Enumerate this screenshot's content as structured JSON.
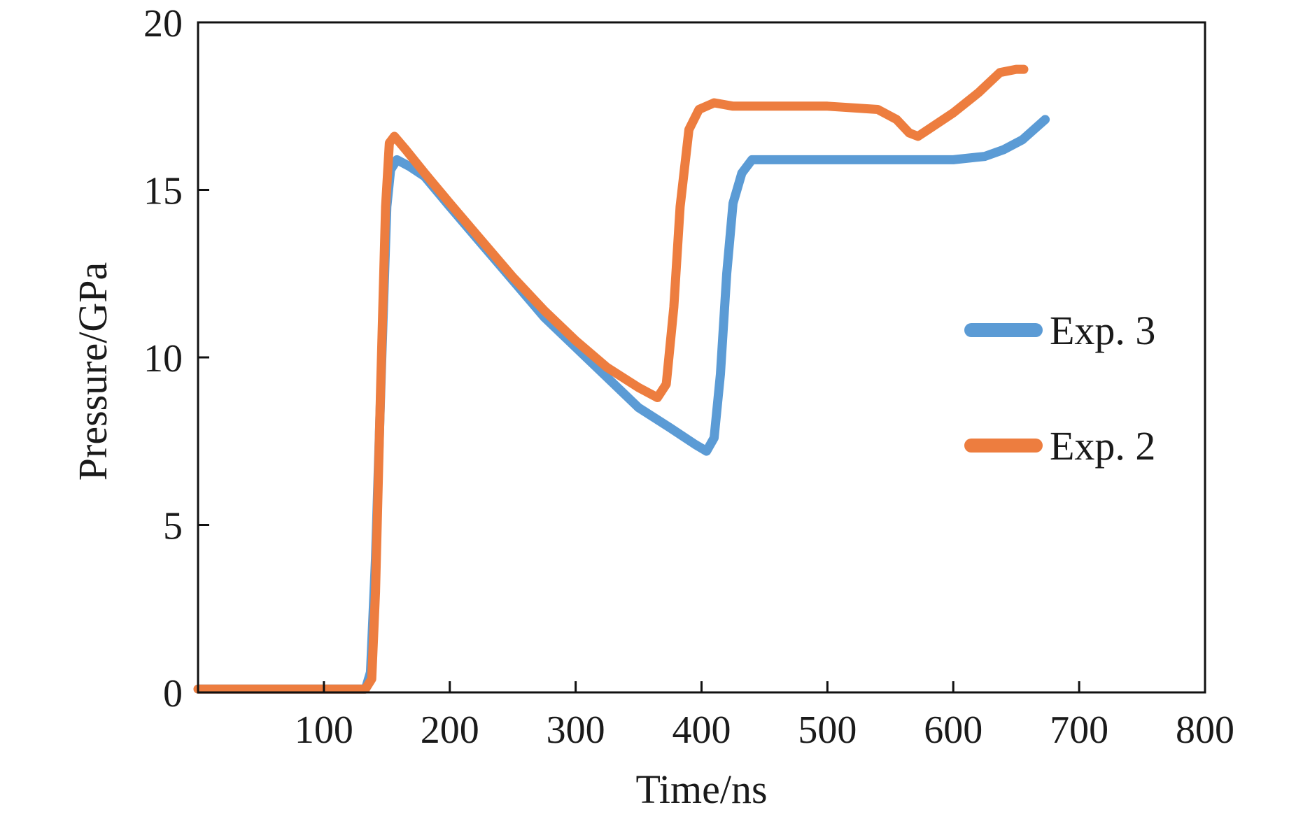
{
  "chart_data": {
    "type": "line",
    "title": "",
    "xlabel": "Time/ns",
    "ylabel": "Pressure/GPa",
    "xlim": [
      0,
      800
    ],
    "ylim": [
      0,
      20
    ],
    "xticks": [
      100,
      200,
      300,
      400,
      500,
      600,
      700,
      800
    ],
    "yticks": [
      0,
      5,
      10,
      15,
      20
    ],
    "grid": false,
    "legend_position": "center-right",
    "series": [
      {
        "name": "Exp. 3",
        "color": "#5B9BD5",
        "points": [
          [
            0,
            0.1
          ],
          [
            133,
            0.1
          ],
          [
            137,
            0.6
          ],
          [
            141,
            4.0
          ],
          [
            146,
            10.0
          ],
          [
            150,
            14.5
          ],
          [
            153,
            15.6
          ],
          [
            158,
            15.9
          ],
          [
            168,
            15.7
          ],
          [
            180,
            15.4
          ],
          [
            200,
            14.5
          ],
          [
            225,
            13.4
          ],
          [
            250,
            12.3
          ],
          [
            275,
            11.2
          ],
          [
            300,
            10.3
          ],
          [
            325,
            9.4
          ],
          [
            350,
            8.5
          ],
          [
            375,
            7.9
          ],
          [
            395,
            7.4
          ],
          [
            404,
            7.2
          ],
          [
            410,
            7.6
          ],
          [
            415,
            9.5
          ],
          [
            420,
            12.5
          ],
          [
            425,
            14.6
          ],
          [
            432,
            15.5
          ],
          [
            440,
            15.9
          ],
          [
            460,
            15.9
          ],
          [
            500,
            15.9
          ],
          [
            550,
            15.9
          ],
          [
            570,
            15.9
          ],
          [
            580,
            15.9
          ],
          [
            600,
            15.9
          ],
          [
            625,
            16.0
          ],
          [
            640,
            16.2
          ],
          [
            655,
            16.5
          ],
          [
            673,
            17.1
          ]
        ]
      },
      {
        "name": "Exp. 2",
        "color": "#ED7D3F",
        "points": [
          [
            0,
            0.1
          ],
          [
            133,
            0.1
          ],
          [
            138,
            0.4
          ],
          [
            141,
            3.0
          ],
          [
            145,
            9.0
          ],
          [
            149,
            14.5
          ],
          [
            152,
            16.4
          ],
          [
            156,
            16.6
          ],
          [
            165,
            16.2
          ],
          [
            180,
            15.5
          ],
          [
            200,
            14.6
          ],
          [
            225,
            13.5
          ],
          [
            250,
            12.4
          ],
          [
            275,
            11.4
          ],
          [
            300,
            10.5
          ],
          [
            325,
            9.7
          ],
          [
            350,
            9.1
          ],
          [
            365,
            8.8
          ],
          [
            372,
            9.2
          ],
          [
            378,
            11.5
          ],
          [
            383,
            14.5
          ],
          [
            390,
            16.8
          ],
          [
            398,
            17.4
          ],
          [
            410,
            17.6
          ],
          [
            425,
            17.5
          ],
          [
            450,
            17.5
          ],
          [
            500,
            17.5
          ],
          [
            540,
            17.4
          ],
          [
            555,
            17.1
          ],
          [
            565,
            16.7
          ],
          [
            572,
            16.6
          ],
          [
            580,
            16.8
          ],
          [
            600,
            17.3
          ],
          [
            620,
            17.9
          ],
          [
            637,
            18.5
          ],
          [
            650,
            18.6
          ],
          [
            656,
            18.6
          ]
        ]
      }
    ]
  }
}
